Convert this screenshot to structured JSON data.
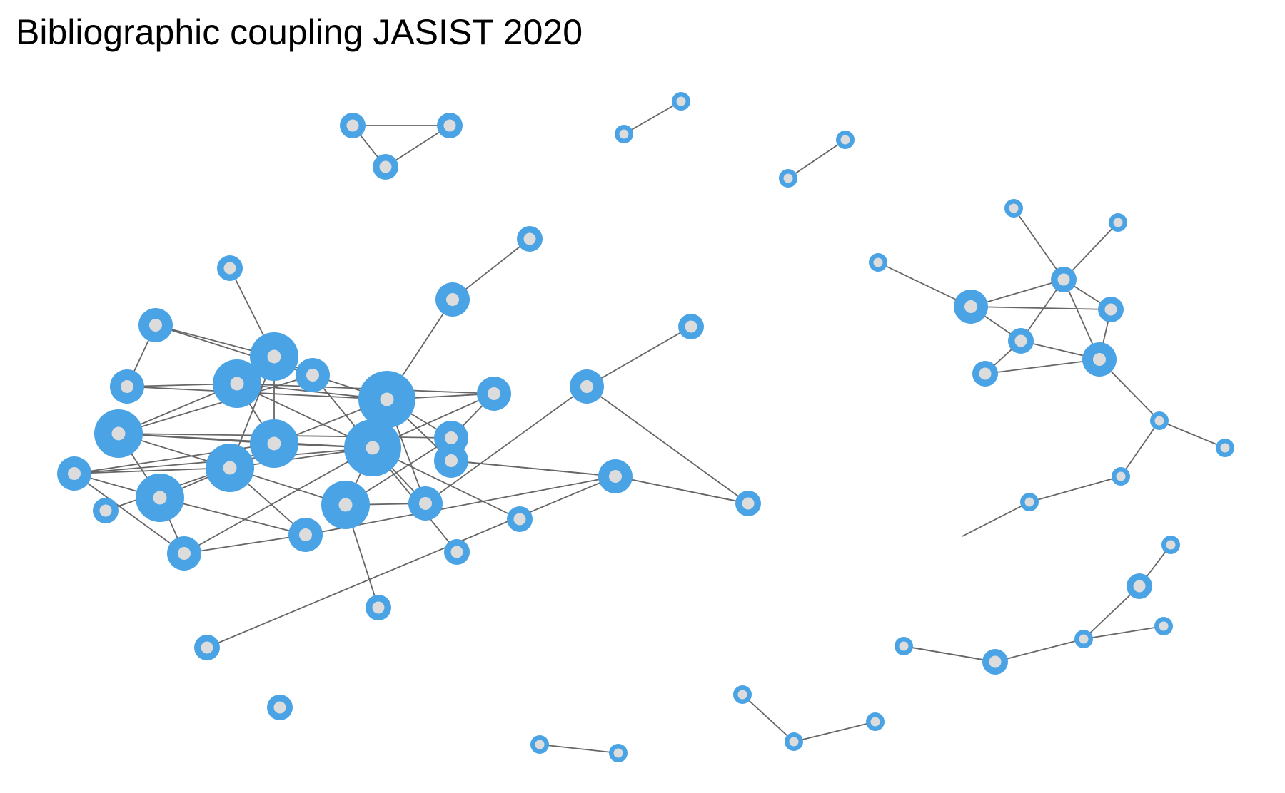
{
  "title": "Bibliographic coupling JASIST 2020",
  "colors": {
    "node": "#4aa3e4",
    "node_center": "#dcdcdc",
    "edge": "#666666",
    "background": "#ffffff"
  },
  "nodes": [
    {
      "id": "a1",
      "size": "small"
    },
    {
      "id": "a2",
      "size": "medium"
    },
    {
      "id": "a3",
      "size": "medium"
    },
    {
      "id": "a4",
      "size": "large"
    },
    {
      "id": "a5",
      "size": "large"
    },
    {
      "id": "a6",
      "size": "medium"
    },
    {
      "id": "a7",
      "size": "xlarge"
    },
    {
      "id": "a8",
      "size": "medium"
    },
    {
      "id": "a9",
      "size": "large"
    },
    {
      "id": "a10",
      "size": "medium"
    },
    {
      "id": "a11",
      "size": "xlarge"
    },
    {
      "id": "a12",
      "size": "large"
    },
    {
      "id": "a13",
      "size": "large"
    },
    {
      "id": "a14",
      "size": "medium"
    },
    {
      "id": "a15",
      "size": "large"
    },
    {
      "id": "a16",
      "size": "large"
    },
    {
      "id": "a17",
      "size": "small"
    },
    {
      "id": "a18",
      "size": "medium"
    },
    {
      "id": "a19",
      "size": "medium"
    },
    {
      "id": "a20",
      "size": "medium"
    },
    {
      "id": "a21",
      "size": "medium"
    },
    {
      "id": "a22",
      "size": "small"
    },
    {
      "id": "a23",
      "size": "small"
    },
    {
      "id": "a24",
      "size": "small"
    },
    {
      "id": "a25",
      "size": "medium"
    },
    {
      "id": "a26",
      "size": "small"
    },
    {
      "id": "a27",
      "size": "medium"
    },
    {
      "id": "a28",
      "size": "small"
    },
    {
      "id": "a29",
      "size": "small"
    },
    {
      "id": "a30",
      "size": "medium"
    },
    {
      "id": "a31",
      "size": "medium"
    },
    {
      "id": "a32",
      "size": "small"
    },
    {
      "id": "a33",
      "size": "medium"
    },
    {
      "id": "a34",
      "size": "small"
    },
    {
      "id": "a35",
      "size": "small"
    },
    {
      "id": "t1",
      "size": "small"
    },
    {
      "id": "t2",
      "size": "small"
    },
    {
      "id": "t3",
      "size": "small"
    },
    {
      "id": "d1",
      "size": "tiny"
    },
    {
      "id": "d2",
      "size": "tiny"
    },
    {
      "id": "e1",
      "size": "tiny"
    },
    {
      "id": "e2",
      "size": "tiny"
    },
    {
      "id": "r1",
      "size": "tiny"
    },
    {
      "id": "r2",
      "size": "tiny"
    },
    {
      "id": "r3",
      "size": "tiny"
    },
    {
      "id": "r4",
      "size": "medium"
    },
    {
      "id": "r5",
      "size": "small"
    },
    {
      "id": "r6",
      "size": "small"
    },
    {
      "id": "r7",
      "size": "small"
    },
    {
      "id": "r8",
      "size": "medium"
    },
    {
      "id": "r9",
      "size": "small"
    },
    {
      "id": "r10",
      "size": "tiny"
    },
    {
      "id": "r11",
      "size": "tiny"
    },
    {
      "id": "r12",
      "size": "tiny"
    },
    {
      "id": "r13",
      "size": "tiny"
    },
    {
      "id": "s1",
      "size": "tiny"
    },
    {
      "id": "s2",
      "size": "small"
    },
    {
      "id": "s3",
      "size": "tiny"
    },
    {
      "id": "s4",
      "size": "tiny"
    },
    {
      "id": "s5",
      "size": "small"
    },
    {
      "id": "s6",
      "size": "tiny"
    },
    {
      "id": "s7",
      "size": "tiny"
    },
    {
      "id": "b1",
      "size": "tiny"
    },
    {
      "id": "b2",
      "size": "tiny"
    },
    {
      "id": "b3",
      "size": "tiny"
    },
    {
      "id": "b4",
      "size": "tiny"
    },
    {
      "id": "b5",
      "size": "tiny"
    }
  ],
  "edges": [
    [
      "a1",
      "a4"
    ],
    [
      "a2",
      "a3"
    ],
    [
      "a2",
      "a4"
    ],
    [
      "a3",
      "a5"
    ],
    [
      "a2",
      "a6"
    ],
    [
      "a3",
      "a7"
    ],
    [
      "a5",
      "a7"
    ],
    [
      "a5",
      "a9"
    ],
    [
      "a5",
      "a11"
    ],
    [
      "a5",
      "a8"
    ],
    [
      "a6",
      "a7"
    ],
    [
      "a6",
      "a11"
    ],
    [
      "a4",
      "a6"
    ],
    [
      "a4",
      "a12"
    ],
    [
      "a5",
      "a12"
    ],
    [
      "a4",
      "a13"
    ],
    [
      "a7",
      "a8"
    ],
    [
      "a7",
      "a10"
    ],
    [
      "a7",
      "a11"
    ],
    [
      "a7",
      "a21"
    ],
    [
      "a7",
      "a19"
    ],
    [
      "a7",
      "a12"
    ],
    [
      "a8",
      "a10"
    ],
    [
      "a8",
      "a11"
    ],
    [
      "a9",
      "a11"
    ],
    [
      "a9",
      "a12"
    ],
    [
      "a9",
      "a13"
    ],
    [
      "a9",
      "a16"
    ],
    [
      "a9",
      "a10"
    ],
    [
      "a10",
      "a15"
    ],
    [
      "a11",
      "a12"
    ],
    [
      "a11",
      "a13"
    ],
    [
      "a11",
      "a15"
    ],
    [
      "a11",
      "a18"
    ],
    [
      "a11",
      "a19"
    ],
    [
      "a11",
      "a22"
    ],
    [
      "a11",
      "a23"
    ],
    [
      "a11",
      "a14"
    ],
    [
      "a12",
      "a13"
    ],
    [
      "a12",
      "a14"
    ],
    [
      "a13",
      "a15"
    ],
    [
      "a13",
      "a16"
    ],
    [
      "a13",
      "a20"
    ],
    [
      "a13",
      "a17"
    ],
    [
      "a14",
      "a13"
    ],
    [
      "a14",
      "a18"
    ],
    [
      "a15",
      "a19"
    ],
    [
      "a15",
      "a24"
    ],
    [
      "a16",
      "a18"
    ],
    [
      "a16",
      "a20"
    ],
    [
      "a18",
      "a20"
    ],
    [
      "a19",
      "a27"
    ],
    [
      "a21",
      "a33"
    ],
    [
      "a21",
      "a31"
    ],
    [
      "a25",
      "a26"
    ],
    [
      "a7",
      "a25"
    ],
    [
      "a27",
      "a28"
    ],
    [
      "a27",
      "a30"
    ],
    [
      "a30",
      "a31"
    ],
    [
      "a31",
      "a32"
    ],
    [
      "a20",
      "a33"
    ],
    [
      "a33",
      "a34"
    ],
    [
      "a16",
      "a14"
    ],
    [
      "a6",
      "a9"
    ],
    [
      "t1",
      "t2"
    ],
    [
      "t1",
      "t3"
    ],
    [
      "t2",
      "t3"
    ],
    [
      "d1",
      "d2"
    ],
    [
      "e1",
      "e2"
    ],
    [
      "r1",
      "r5"
    ],
    [
      "r2",
      "r5"
    ],
    [
      "r3",
      "r4"
    ],
    [
      "r4",
      "r5"
    ],
    [
      "r4",
      "r6"
    ],
    [
      "r4",
      "r7"
    ],
    [
      "r5",
      "r6"
    ],
    [
      "r5",
      "r8"
    ],
    [
      "r5",
      "r7"
    ],
    [
      "r7",
      "r8"
    ],
    [
      "r7",
      "r9"
    ],
    [
      "r9",
      "r8"
    ],
    [
      "r6",
      "r8"
    ],
    [
      "r8",
      "r10"
    ],
    [
      "r10",
      "r11"
    ],
    [
      "r10",
      "r12"
    ],
    [
      "r12",
      "r13"
    ],
    [
      "r13",
      "r35"
    ],
    [
      "s1",
      "s2"
    ],
    [
      "s2",
      "s3"
    ],
    [
      "s3",
      "s4"
    ],
    [
      "s3",
      "s5"
    ],
    [
      "s5",
      "s6"
    ],
    [
      "s5",
      "s7"
    ],
    [
      "b1",
      "b2"
    ],
    [
      "b2",
      "b3"
    ],
    [
      "b4",
      "b5"
    ]
  ]
}
